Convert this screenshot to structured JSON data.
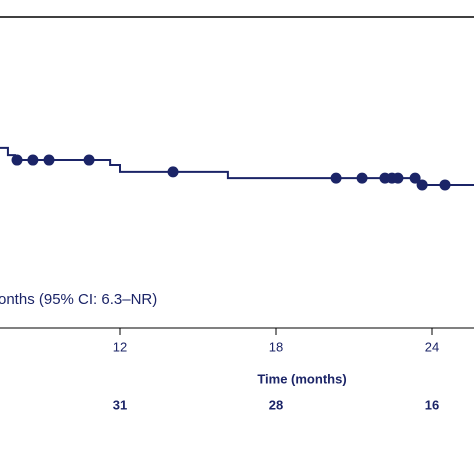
{
  "chart_data": {
    "type": "line",
    "annotation": "onths (95% CI: 6.3–NR)",
    "x_label": "Time (months)",
    "xlim": [
      7.385,
      25.615
    ],
    "xticks": [
      12,
      18,
      24
    ],
    "ylim": [
      0,
      1
    ],
    "color": "#1b2467",
    "series": [
      {
        "color": "#1b2467",
        "x": [
          7.385,
          7.69,
          7.69,
          7.96,
          7.96,
          11.62,
          11.62,
          12.0,
          12.0,
          16.15,
          16.15,
          23.46,
          23.46,
          25.615
        ],
        "values": [
          0.579,
          0.579,
          0.556,
          0.556,
          0.54,
          0.54,
          0.524,
          0.524,
          0.502,
          0.502,
          0.482,
          0.482,
          0.46,
          0.46
        ]
      }
    ],
    "censored": {
      "x": [
        8.04,
        8.65,
        9.27,
        10.81,
        14.04,
        20.31,
        21.31,
        22.19,
        22.46,
        22.69,
        23.35,
        23.62,
        24.5
      ],
      "values": [
        0.54,
        0.54,
        0.54,
        0.54,
        0.502,
        0.482,
        0.482,
        0.482,
        0.482,
        0.482,
        0.482,
        0.46,
        0.46
      ]
    },
    "at_risk": {
      "x": [
        12,
        18,
        24
      ],
      "values": [
        31,
        28,
        16
      ]
    }
  }
}
